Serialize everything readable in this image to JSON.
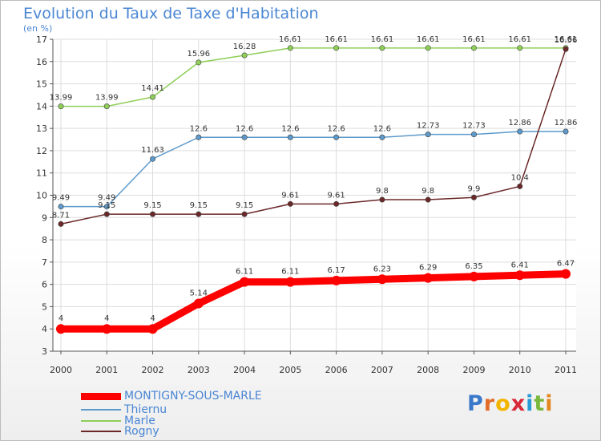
{
  "title": "Evolution du Taux de Taxe d'Habitation",
  "unit": "(en %)",
  "brand": {
    "letters": [
      "P",
      "r",
      "o",
      "x",
      "i",
      "t",
      "i"
    ],
    "colors": [
      "#3a78c9",
      "#e36c2a",
      "#f2b500",
      "#d8283a",
      "#2a9bd3",
      "#79b83a",
      "#e2861d"
    ]
  },
  "chart_data": {
    "type": "line",
    "title": "Evolution du Taux de Taxe d'Habitation",
    "ylabel": "(en %)",
    "xlabel": "",
    "x": [
      "2000",
      "2001",
      "2002",
      "2003",
      "2004",
      "2005",
      "2006",
      "2007",
      "2008",
      "2009",
      "2010",
      "2011"
    ],
    "ylim": [
      3,
      17
    ],
    "yticks": [
      "3",
      "4",
      "5",
      "6",
      "7",
      "8",
      "9",
      "10",
      "11",
      "12",
      "13",
      "14",
      "15",
      "16",
      "17"
    ],
    "grid": true,
    "legend_position": "bottom-left",
    "series": [
      {
        "name": "MONTIGNY-SOUS-MARLE",
        "color": "#ff0000",
        "values": [
          4,
          4,
          4,
          5.14,
          6.11,
          6.11,
          6.17,
          6.23,
          6.29,
          6.35,
          6.41,
          6.47
        ],
        "labels": [
          "4",
          "4",
          "4",
          "5.14",
          "6.11",
          "6.11",
          "6.17",
          "6.23",
          "6.29",
          "6.35",
          "6.41",
          "6.47"
        ]
      },
      {
        "name": "Thiernu",
        "color": "#5d9acb",
        "values": [
          9.49,
          9.49,
          11.63,
          12.6,
          12.6,
          12.6,
          12.6,
          12.6,
          12.73,
          12.73,
          12.86,
          12.86
        ],
        "labels": [
          "9.49",
          "9.49",
          "11.63",
          "12.6",
          "12.6",
          "12.6",
          "12.6",
          "12.6",
          "12.73",
          "12.73",
          "12.86",
          "12.86"
        ]
      },
      {
        "name": "Marle",
        "color": "#8fcf58",
        "values": [
          13.99,
          13.99,
          14.41,
          15.96,
          16.28,
          16.61,
          16.61,
          16.61,
          16.61,
          16.61,
          16.61,
          16.61
        ],
        "labels": [
          "13.99",
          "13.99",
          "14.41",
          "15.96",
          "16.28",
          "16.61",
          "16.61",
          "16.61",
          "16.61",
          "16.61",
          "16.61",
          "16.61"
        ]
      },
      {
        "name": "Rogny",
        "color": "#6b2828",
        "values": [
          8.71,
          9.15,
          9.15,
          9.15,
          9.15,
          9.61,
          9.61,
          9.8,
          9.8,
          9.9,
          10.4,
          16.56
        ],
        "labels": [
          "8.71",
          "9.15",
          "9.15",
          "9.15",
          "9.15",
          "9.61",
          "9.61",
          "9.8",
          "9.8",
          "9.9",
          "10.4",
          "16.56"
        ]
      }
    ]
  }
}
